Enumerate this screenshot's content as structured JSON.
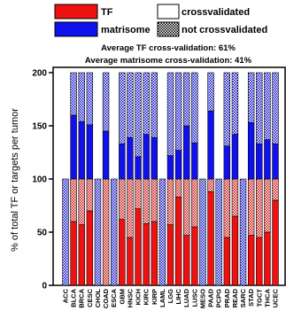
{
  "legend": {
    "items": [
      {
        "label": "TF",
        "color": "#ee1111",
        "pattern": "solid"
      },
      {
        "label": "crossvalidated",
        "color": "#ffffff",
        "pattern": "solid"
      },
      {
        "label": "matrisome",
        "color": "#1111ee",
        "pattern": "solid"
      },
      {
        "label": "not crossvalidated",
        "color": "#000000",
        "pattern": "checker"
      }
    ]
  },
  "summary": {
    "line1": "Average TF cross-validation: 61%",
    "line2": "Average matrisome cross-validation: 41%"
  },
  "chart_data": {
    "type": "bar",
    "stacked": true,
    "ylabel": "% of total TF or targets per tumor",
    "ylim": [
      0,
      200
    ],
    "yticks": [
      0,
      50,
      100,
      150,
      200
    ],
    "grid": false,
    "legend_position": "top",
    "categories": [
      "ACC",
      "BLCA",
      "BRCA",
      "CESC",
      "CHOL",
      "COAD",
      "ESCA",
      "GBM",
      "HNSC",
      "KICH",
      "KIRC",
      "KIRP",
      "LAML",
      "LGG",
      "LIHC",
      "LUAD",
      "LUSC",
      "MESO",
      "PAAD",
      "PCPG",
      "PRAD",
      "READ",
      "SARC",
      "STAD",
      "TGCT",
      "THCA",
      "UCEC"
    ],
    "series": [
      {
        "name": "TF",
        "role": "tf_crossvalidated",
        "color": "#ee1111",
        "values": [
          0,
          60,
          57,
          70,
          0,
          0,
          0,
          62,
          45,
          72,
          58,
          60,
          0,
          57,
          83,
          47,
          55,
          0,
          88,
          0,
          45,
          65,
          0,
          47,
          45,
          50,
          80
        ]
      },
      {
        "name": "TF",
        "role": "tf_not_crossvalidated",
        "color": "#ee1111",
        "pattern": "checker",
        "values": [
          0,
          40,
          43,
          30,
          0,
          100,
          0,
          38,
          55,
          28,
          42,
          40,
          0,
          43,
          17,
          53,
          45,
          0,
          12,
          0,
          55,
          35,
          0,
          53,
          55,
          50,
          20
        ]
      },
      {
        "name": "matrisome",
        "role": "matrisome_crossvalidated",
        "color": "#1111ee",
        "values": [
          0,
          60,
          54,
          51,
          0,
          45,
          0,
          33,
          39,
          21,
          42,
          39,
          0,
          22,
          27,
          50,
          34,
          0,
          64,
          0,
          31,
          42,
          0,
          53,
          33,
          37,
          33
        ]
      },
      {
        "name": "matrisome",
        "role": "matrisome_not_crossvalidated",
        "color": "#1111ee",
        "pattern": "checker",
        "values": [
          100,
          40,
          46,
          49,
          100,
          55,
          100,
          67,
          61,
          79,
          58,
          61,
          100,
          78,
          73,
          50,
          66,
          100,
          36,
          100,
          69,
          58,
          100,
          47,
          67,
          63,
          67
        ]
      }
    ]
  }
}
